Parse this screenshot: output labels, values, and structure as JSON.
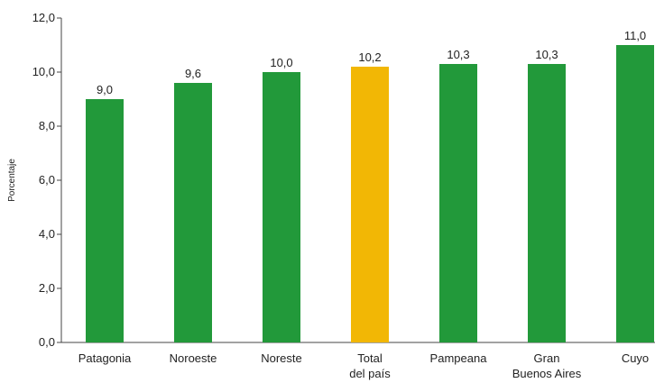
{
  "chart_data": {
    "type": "bar",
    "categories": [
      [
        "Patagonia"
      ],
      [
        "Noroeste"
      ],
      [
        "Noreste"
      ],
      [
        "Total",
        "del país"
      ],
      [
        "Pampeana"
      ],
      [
        "Gran",
        "Buenos Aires"
      ],
      [
        "Cuyo"
      ]
    ],
    "values": [
      9.0,
      9.6,
      10.0,
      10.2,
      10.3,
      10.3,
      11.0
    ],
    "value_labels": [
      "9,0",
      "9,6",
      "10,0",
      "10,2",
      "10,3",
      "10,3",
      "11,0"
    ],
    "ylabel": "Porcentaje",
    "ylim": [
      0,
      12
    ],
    "yticks": [
      "0,0",
      "2,0",
      "4,0",
      "6,0",
      "8,0",
      "10,0",
      "12,0"
    ],
    "grid": false,
    "colors": {
      "default": "#22993a",
      "highlight": "#f2b705",
      "axis": "#444444"
    },
    "highlight_index": 3
  }
}
